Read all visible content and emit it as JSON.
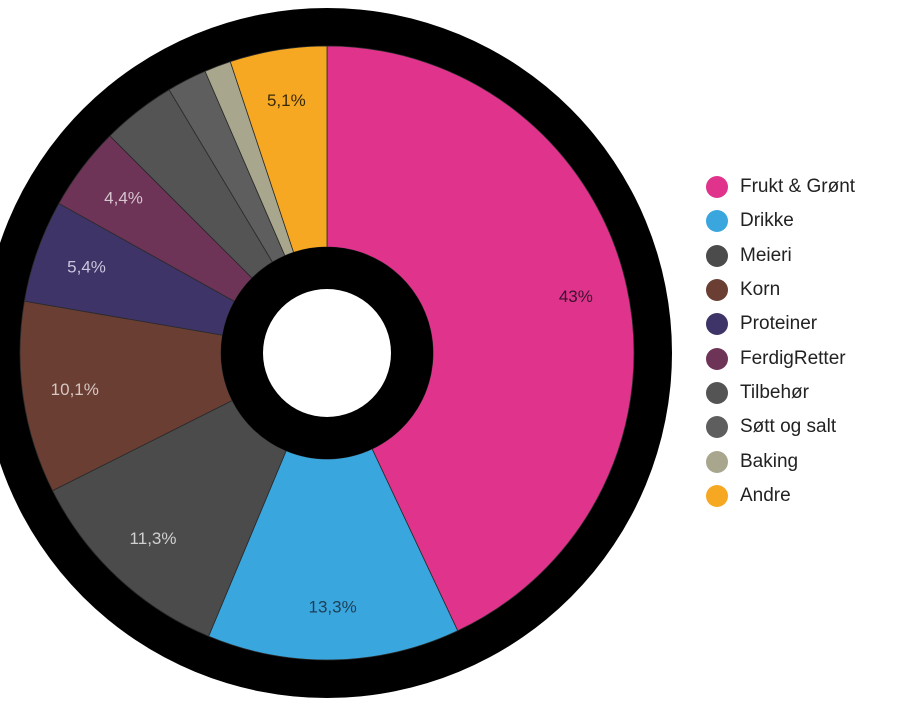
{
  "chart_data": {
    "type": "pie",
    "donut": true,
    "legend_position": "right",
    "slices": [
      {
        "label": "Frukt & Grønt",
        "value": 43,
        "value_label": "43%",
        "color": "#e0348c",
        "label_color": "#3a1030"
      },
      {
        "label": "Drikke",
        "value": 13.3,
        "value_label": "13,3%",
        "color": "#3aa6de",
        "label_color": "#1c3f57"
      },
      {
        "label": "Meieri",
        "value": 11.3,
        "value_label": "11,3%",
        "color": "#4b4b4b",
        "label_color": "#d0d0d0"
      },
      {
        "label": "Korn",
        "value": 10.1,
        "value_label": "10,1%",
        "color": "#6a3e33",
        "label_color": "#d6c7c2"
      },
      {
        "label": "Proteiner",
        "value": 5.4,
        "value_label": "5,4%",
        "color": "#3e3468",
        "label_color": "#c9c5da"
      },
      {
        "label": "FerdigRetter",
        "value": 4.4,
        "value_label": "4,4%",
        "color": "#6e3458",
        "label_color": "#d6c4cf"
      },
      {
        "label": "Tilbehør",
        "value": 3.9,
        "value_label": "",
        "color": "#545454",
        "label_color": "#d0d0d0"
      },
      {
        "label": "Søtt og salt",
        "value": 2.1,
        "value_label": "",
        "color": "#5e5e5e",
        "label_color": "#d0d0d0"
      },
      {
        "label": "Baking",
        "value": 1.4,
        "value_label": "",
        "color": "#a9a68e",
        "label_color": "#333333"
      },
      {
        "label": "Andre",
        "value": 5.1,
        "value_label": "5,1%",
        "color": "#f6a823",
        "label_color": "#3a2a08"
      }
    ]
  }
}
